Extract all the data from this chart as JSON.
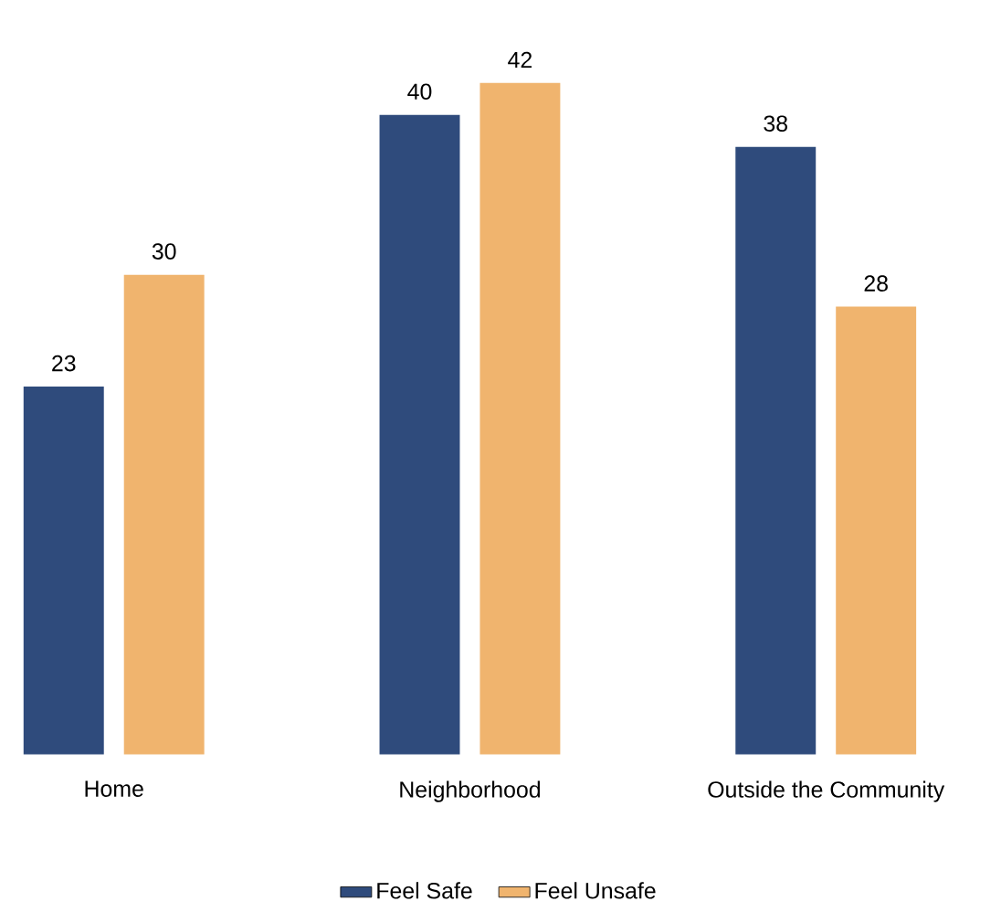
{
  "chart_data": {
    "type": "bar",
    "categories": [
      "Home",
      "Neighborhood",
      "Outside the Community"
    ],
    "series": [
      {
        "name": "Feel Safe",
        "color": "#2f4b7c",
        "values": [
          23,
          40,
          38
        ]
      },
      {
        "name": "Feel Unsafe",
        "color": "#f0b46e",
        "values": [
          30,
          42,
          28
        ]
      }
    ],
    "data_labels": true,
    "legend": "bottom"
  }
}
